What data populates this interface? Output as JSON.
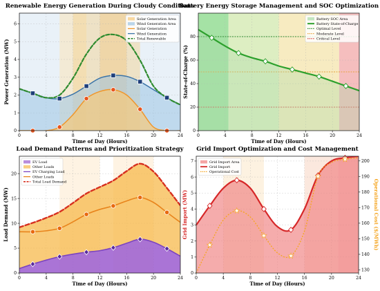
{
  "figure": {
    "background": "#ffffff"
  },
  "chart_data": [
    {
      "type": "area",
      "title": "Renewable Energy Generation During Cloudy Conditions",
      "xlabel": "Time of Day (Hours)",
      "ylabel": "Power Generation (MW)",
      "xlim": [
        0,
        24
      ],
      "ylim": [
        0,
        6.6
      ],
      "xticks": [
        "0",
        "4",
        "8",
        "12",
        "16",
        "20",
        "24"
      ],
      "yticks": [
        "0",
        "1",
        "2",
        "3",
        "4",
        "5",
        "6"
      ],
      "legend_position": "top-right",
      "legend": [
        "Solar Generation Area",
        "Wind Generation Area",
        "Solar Generation",
        "Wind Generation",
        "Total Renewable"
      ],
      "grid": true,
      "background_bands": "daylight hours tint",
      "series": [
        {
          "name": "Solar Generation",
          "color": "#f0962a",
          "x": [
            0,
            2,
            4,
            6,
            8,
            10,
            12,
            14,
            16,
            18,
            20,
            22,
            24
          ],
          "values": [
            0,
            0,
            0,
            0.2,
            0.9,
            1.8,
            2.2,
            2.3,
            2.0,
            1.2,
            0.2,
            0,
            0
          ]
        },
        {
          "name": "Wind Generation",
          "color": "#3b74a8",
          "x": [
            0,
            2,
            4,
            6,
            8,
            10,
            12,
            14,
            16,
            18,
            20,
            22,
            24
          ],
          "values": [
            2.35,
            2.1,
            1.85,
            1.8,
            2.05,
            2.5,
            2.95,
            3.1,
            3.05,
            2.75,
            2.3,
            1.85,
            1.45
          ]
        },
        {
          "name": "Total Renewable",
          "color": "#2e8b2e",
          "dashed": true,
          "x": [
            0,
            2,
            4,
            6,
            8,
            10,
            12,
            14,
            16,
            18,
            20,
            22,
            24
          ],
          "values": [
            2.35,
            2.1,
            1.85,
            2.0,
            2.95,
            4.3,
            5.2,
            5.4,
            5.05,
            3.95,
            2.5,
            1.85,
            1.45
          ]
        }
      ],
      "markers": [
        {
          "series": "Wind Generation",
          "x": [
            2,
            6,
            10,
            14,
            18,
            22
          ],
          "values": [
            2.1,
            1.8,
            2.5,
            3.1,
            2.75,
            1.85
          ],
          "shape": "square"
        },
        {
          "series": "Solar Generation",
          "x": [
            2,
            6,
            10,
            14,
            18,
            22
          ],
          "values": [
            0,
            0.2,
            1.8,
            2.3,
            1.2,
            0
          ],
          "shape": "circle"
        }
      ]
    },
    {
      "type": "line",
      "title": "Battery Energy Storage Management and SOC Optimization",
      "xlabel": "Time of Day (Hours)",
      "ylabel": "State-of-Charge (%)",
      "xlim": [
        0,
        24
      ],
      "ylim": [
        0,
        100
      ],
      "xticks": [
        "0",
        "4",
        "8",
        "12",
        "16",
        "20",
        "24"
      ],
      "yticks": [
        "0",
        "20",
        "40",
        "60",
        "80"
      ],
      "legend_position": "top-right",
      "legend": [
        "Battery SOC Area",
        "Battery State-of-Charge",
        "Optimal Level",
        "Moderate Level",
        "Critical Level"
      ],
      "grid": true,
      "reference_lines": [
        {
          "name": "Optimal Level",
          "value": 80,
          "color": "#2e8b2e"
        },
        {
          "name": "Moderate Level",
          "value": 50,
          "color": "#e6a23c"
        },
        {
          "name": "Critical Level",
          "value": 20,
          "color": "#d9534f"
        }
      ],
      "series": [
        {
          "name": "Battery State-of-Charge",
          "color": "#2ca02c",
          "x": [
            0,
            2,
            4,
            6,
            8,
            10,
            12,
            14,
            16,
            18,
            20,
            22,
            24
          ],
          "values": [
            86,
            79,
            72,
            66,
            62,
            59,
            55,
            52,
            49,
            46,
            42,
            38,
            34
          ]
        }
      ],
      "markers": [
        {
          "series": "Battery State-of-Charge",
          "x": [
            2,
            6,
            10,
            14,
            18,
            22
          ],
          "values": [
            79,
            66,
            59,
            52,
            46,
            38
          ],
          "shape": "diamond"
        }
      ]
    },
    {
      "type": "area",
      "title": "Load Demand Patterns and Prioritization Strategy",
      "xlabel": "Time of Day (Hours)",
      "ylabel": "Load Demand (MW)",
      "xlim": [
        0,
        24
      ],
      "ylim": [
        0,
        23.5
      ],
      "xticks": [
        "0",
        "4",
        "8",
        "12",
        "16",
        "20",
        "24"
      ],
      "yticks": [
        "0",
        "5",
        "10",
        "15",
        "20"
      ],
      "legend_position": "top-left",
      "legend": [
        "EV Load",
        "Other Loads",
        "EV Charging Load",
        "Other Loads",
        "Total Load Demand"
      ],
      "grid": true,
      "series": [
        {
          "name": "EV Charging Load",
          "color": "#7b44c0",
          "x": [
            0,
            2,
            4,
            6,
            8,
            10,
            12,
            14,
            16,
            18,
            20,
            22,
            24
          ],
          "values": [
            0.9,
            1.8,
            2.6,
            3.3,
            3.8,
            4.2,
            4.5,
            5.1,
            6.0,
            6.8,
            6.2,
            4.9,
            3.4
          ]
        },
        {
          "name": "Other Loads",
          "color": "#e8841c",
          "x": [
            0,
            2,
            4,
            6,
            8,
            10,
            12,
            14,
            16,
            18,
            20,
            22,
            24
          ],
          "values": [
            8.3,
            8.3,
            8.5,
            9.0,
            10.3,
            11.8,
            12.8,
            13.5,
            14.5,
            15.2,
            14.2,
            12.2,
            10.2
          ]
        },
        {
          "name": "Total Load Demand",
          "color": "#d7301f",
          "dashed": true,
          "x": [
            0,
            2,
            4,
            6,
            8,
            10,
            12,
            14,
            16,
            18,
            20,
            22,
            24
          ],
          "values": [
            9.2,
            10.1,
            11.1,
            12.3,
            14.1,
            16.0,
            17.3,
            18.6,
            20.5,
            22.0,
            20.4,
            17.1,
            13.6
          ]
        }
      ],
      "markers": [
        {
          "series": "EV Charging Load",
          "x": [
            2,
            6,
            10,
            14,
            18,
            22
          ],
          "values": [
            1.8,
            3.3,
            4.2,
            5.1,
            6.8,
            4.9
          ],
          "shape": "diamond"
        },
        {
          "series": "Other Loads",
          "x": [
            2,
            6,
            10,
            14,
            18,
            22
          ],
          "values": [
            8.3,
            9.0,
            11.8,
            13.5,
            15.2,
            12.2
          ],
          "shape": "circle"
        }
      ]
    },
    {
      "type": "line",
      "title": "Grid Import Optimization and Cost Management",
      "xlabel": "Time of Day (Hours)",
      "ylabel": "Grid Import (MW)",
      "ylabel_right": "Operational Cost ($/MWh)",
      "xlim": [
        0,
        24
      ],
      "ylim": [
        0,
        7.3
      ],
      "ylim_right": [
        128,
        203
      ],
      "xticks": [
        "0",
        "4",
        "8",
        "12",
        "16",
        "20",
        "24"
      ],
      "yticks": [
        "0",
        "1",
        "2",
        "3",
        "4",
        "5",
        "6",
        "7"
      ],
      "yticks_right": [
        "130",
        "140",
        "150",
        "160",
        "170",
        "180",
        "190",
        "200"
      ],
      "legend_position": "top-left",
      "legend": [
        "Grid Import Area",
        "Grid Import",
        "Operational Cost"
      ],
      "grid": true,
      "series": [
        {
          "name": "Grid Import",
          "color": "#d62728",
          "x": [
            0,
            2,
            4,
            6,
            8,
            10,
            12,
            14,
            16,
            18,
            20,
            22,
            24
          ],
          "values": [
            3.0,
            4.2,
            5.3,
            5.8,
            5.3,
            4.0,
            2.9,
            2.7,
            4.0,
            6.1,
            7.0,
            7.2,
            7.3
          ]
        },
        {
          "name": "Operational Cost",
          "color": "#f5a623",
          "dashed": true,
          "axis": "right",
          "x": [
            0,
            2,
            4,
            6,
            8,
            10,
            12,
            14,
            16,
            18,
            20,
            22,
            24
          ],
          "values": [
            128,
            146,
            162,
            168,
            164,
            152,
            141,
            139,
            155,
            190,
            199,
            201,
            202
          ]
        }
      ],
      "markers": [
        {
          "series": "Grid Import",
          "x": [
            2,
            6,
            10,
            14,
            18,
            22
          ],
          "values": [
            4.2,
            5.8,
            4.0,
            2.7,
            6.1,
            7.2
          ],
          "shape": "diamond"
        },
        {
          "series": "Operational Cost",
          "x": [
            2,
            6,
            10,
            14,
            18,
            22
          ],
          "values": [
            146,
            168,
            152,
            139,
            190,
            201
          ],
          "shape": "star"
        }
      ]
    }
  ]
}
